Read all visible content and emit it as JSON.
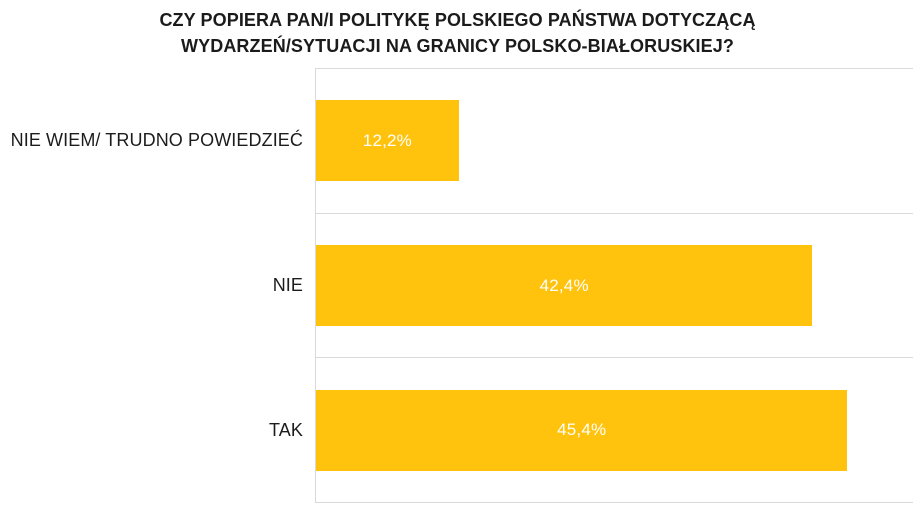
{
  "chart_data": {
    "type": "bar",
    "orientation": "horizontal",
    "title": "CZY POPIERA PAN/I POLITYKĘ POLSKIEGO PAŃSTWA DOTYCZĄCĄ WYDARZEŃ/SYTUACJI NA GRANICY POLSKO-BIAŁORUSKIEJ?",
    "title_lines": [
      "CZY POPIERA PAN/I POLITYKĘ POLSKIEGO PAŃSTWA DOTYCZĄCĄ",
      "WYDARZEŃ/SYTUACJI NA GRANICY POLSKO-BIAŁORUSKIEJ?"
    ],
    "categories": [
      "NIE WIEM/ TRUDNO POWIEDZIEĆ",
      "NIE",
      "TAK"
    ],
    "values": [
      12.2,
      42.4,
      45.4
    ],
    "value_labels": [
      "12,2%",
      "42,4%",
      "45,4%"
    ],
    "xlim": [
      0,
      51
    ],
    "legend": "none",
    "grid": "category-separators",
    "colors": {
      "bar": "#FFC20D",
      "value_label": "#FFFFFF",
      "gridline": "#D9D9D9",
      "title_text": "#1B1B1B",
      "category_text": "#1C1C1C",
      "background": "#FFFFFF"
    }
  }
}
